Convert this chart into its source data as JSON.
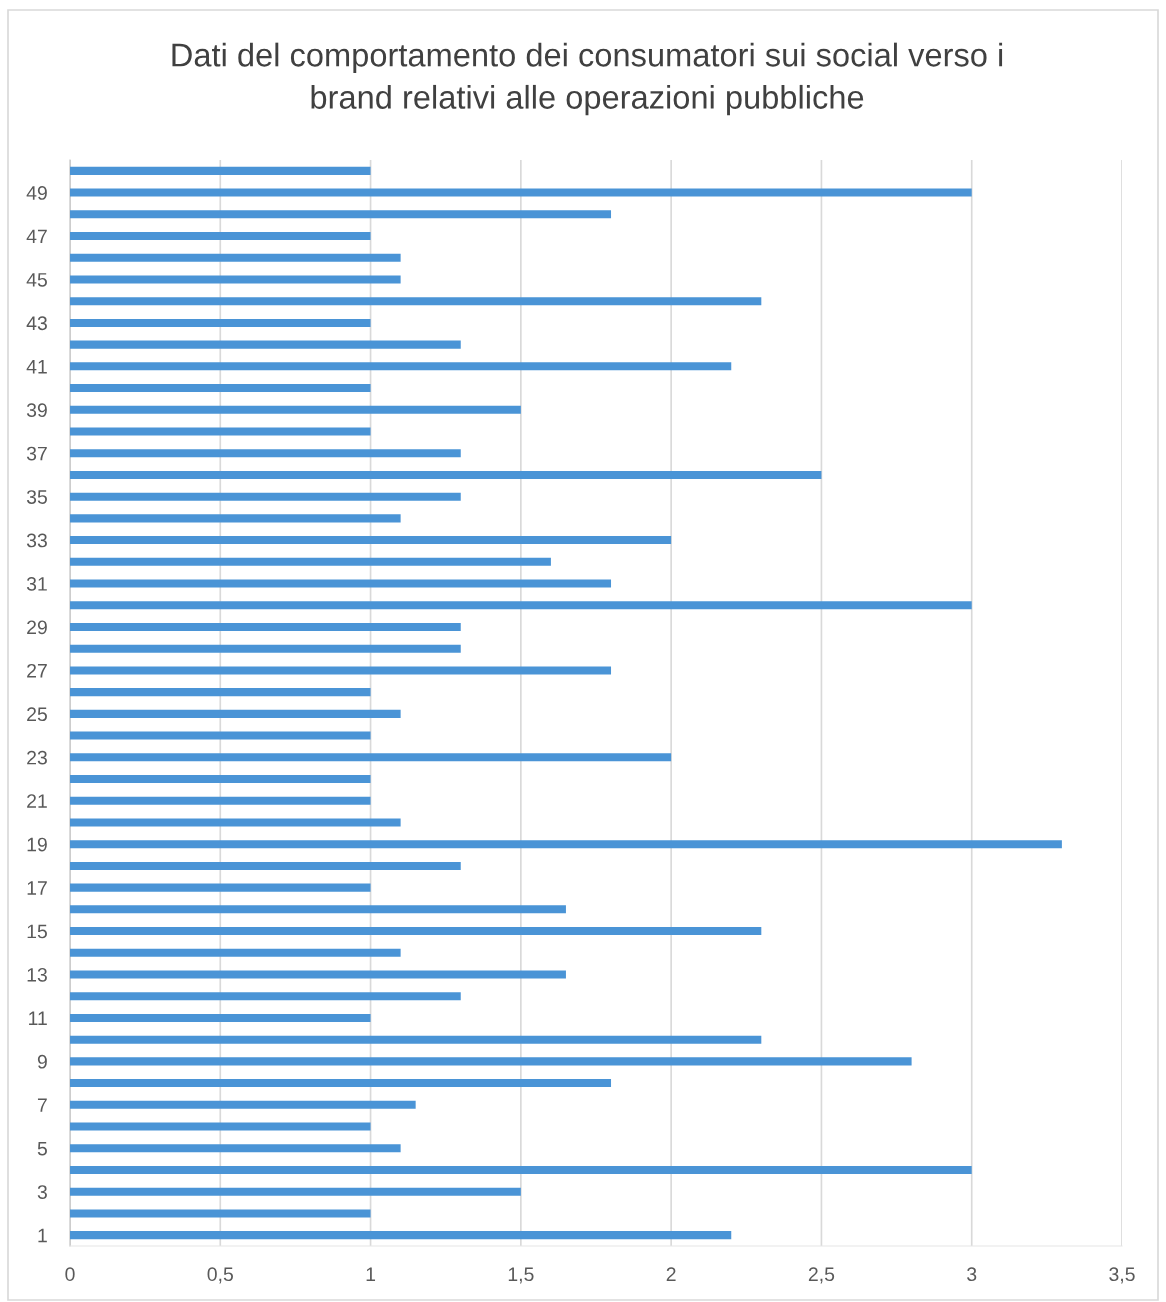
{
  "chart_data": {
    "type": "bar",
    "orientation": "horizontal",
    "title": "Dati del comportamento dei consumatori sui social verso i\nbrand relativi alle operazioni pubbliche",
    "categories": [
      null,
      "49",
      null,
      "47",
      null,
      "45",
      null,
      "43",
      null,
      "41",
      null,
      "39",
      null,
      "37",
      null,
      "35",
      null,
      "33",
      null,
      "31",
      null,
      "29",
      null,
      "27",
      null,
      "25",
      null,
      "23",
      null,
      "21",
      null,
      "19",
      null,
      "17",
      null,
      "15",
      null,
      "13",
      null,
      "11",
      null,
      "9",
      null,
      "7",
      null,
      "5",
      null,
      "3",
      null,
      "1"
    ],
    "values": [
      1.0,
      3.0,
      1.8,
      1.0,
      1.1,
      1.1,
      2.3,
      1.0,
      1.3,
      2.2,
      1.0,
      1.5,
      1.0,
      1.3,
      2.5,
      1.3,
      1.1,
      2.0,
      1.6,
      1.8,
      3.0,
      1.3,
      1.3,
      1.8,
      1.0,
      1.1,
      1.0,
      2.0,
      1.0,
      1.0,
      1.1,
      3.3,
      1.3,
      1.0,
      1.65,
      2.3,
      1.1,
      1.65,
      1.3,
      1.0,
      2.3,
      2.8,
      1.8,
      1.15,
      1.0,
      1.1,
      3.0,
      1.5,
      1.0,
      2.2
    ],
    "color": "#4a94d6",
    "xlim": [
      0,
      3.5
    ],
    "xticks": [
      0,
      {
        "value": 0.5,
        "label": "0,5"
      },
      1,
      {
        "value": 1.5,
        "label": "1,5"
      },
      2,
      {
        "value": 2.5,
        "label": "2,5"
      },
      3,
      {
        "value": 3.5,
        "label": "3,5"
      }
    ],
    "grid": "x"
  }
}
